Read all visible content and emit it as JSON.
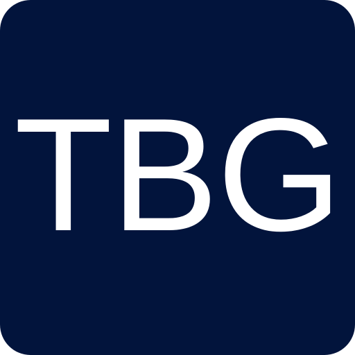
{
  "icon": {
    "monogram": "TBG",
    "background_color": "#02143c",
    "text_color": "#ffffff"
  }
}
